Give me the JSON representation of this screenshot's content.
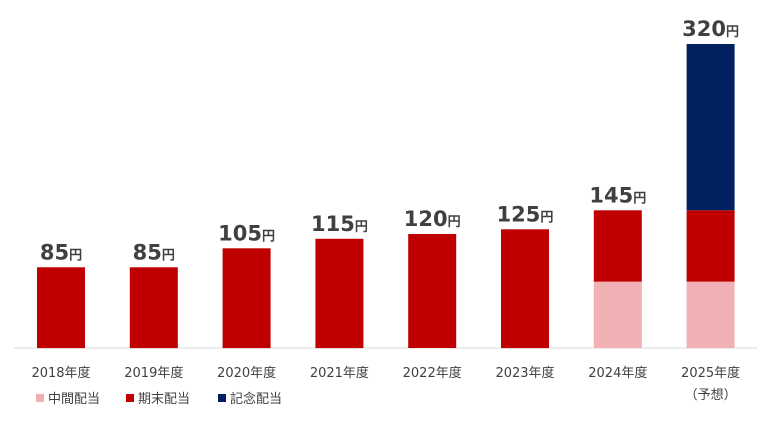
{
  "chart_data": {
    "type": "bar",
    "stacked": true,
    "categories": [
      "2018年度",
      "2019年度",
      "2020年度",
      "2021年度",
      "2022年度",
      "2023年度",
      "2024年度",
      "2025年度"
    ],
    "category_sublabels": [
      "",
      "",
      "",
      "",
      "",
      "",
      "",
      "（予想）"
    ],
    "series": [
      {
        "name": "中間配当",
        "color": "#f0b0b4",
        "values": [
          0,
          0,
          0,
          0,
          0,
          0,
          70,
          70
        ]
      },
      {
        "name": "期末配当",
        "color": "#c00000",
        "values": [
          85,
          85,
          105,
          115,
          120,
          125,
          75,
          75
        ]
      },
      {
        "name": "記念配当",
        "color": "#002060",
        "values": [
          0,
          0,
          0,
          0,
          0,
          0,
          0,
          175
        ]
      }
    ],
    "totals": [
      "85",
      "85",
      "105",
      "115",
      "120",
      "125",
      "145",
      "320"
    ],
    "total_unit": "円",
    "ylim": [
      0,
      320
    ],
    "grid": false,
    "legend_position": "bottom-left",
    "title": "",
    "xlabel": "",
    "ylabel": ""
  }
}
